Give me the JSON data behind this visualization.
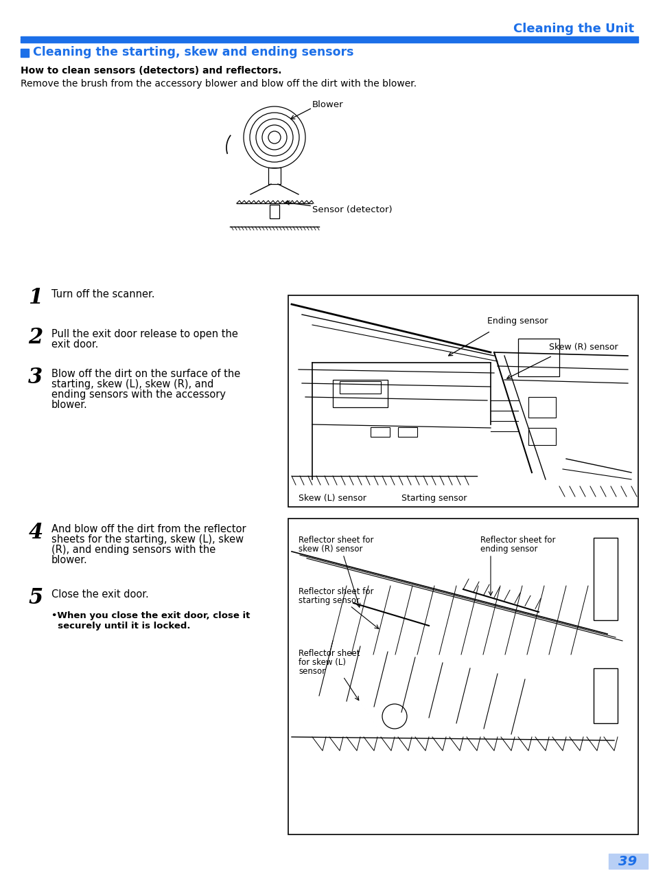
{
  "page_bg": "#ffffff",
  "blue_color": "#1c6fe8",
  "black": "#000000",
  "light_blue_bg": "#b8cff5",
  "header_title": "Cleaning the Unit",
  "section_title": "Cleaning the starting, skew and ending sensors",
  "subsection_title": "How to clean sensors (detectors) and reflectors.",
  "intro_text": "Remove the brush from the accessory blower and blow off the dirt with the blower.",
  "blower_label": "Blower",
  "sensor_label": "Sensor (detector)",
  "step1": "Turn off the scanner.",
  "step2_line1": "Pull the exit door release to open the",
  "step2_line2": "exit door.",
  "step3_line1": "Blow off the dirt on the surface of the",
  "step3_line2": "starting, skew (L), skew (R), and",
  "step3_line3": "ending sensors with the accessory",
  "step3_line4": "blower.",
  "step4_line1": "And blow off the dirt from the reflector",
  "step4_line2": "sheets for the starting, skew (L), skew",
  "step4_line3": "(R), and ending sensors with the",
  "step4_line4": "blower.",
  "step5": "Close the exit door.",
  "note_line1": "•When you close the exit door, close it",
  "note_line2": "  securely until it is locked.",
  "d1_label0": "Ending sensor",
  "d1_label1": "Skew (R) sensor",
  "d1_label2": "Skew (L) sensor",
  "d1_label3": "Starting sensor",
  "d2_label0": "Reflector sheet for",
  "d2_label0b": "skew (R) sensor",
  "d2_label1": "Reflector sheet for",
  "d2_label1b": "ending sensor",
  "d2_label2": "Reflector sheet for",
  "d2_label2b": "starting sensor",
  "d2_label3": "Reflector sheet",
  "d2_label3b": "for skew (L)",
  "d2_label3c": "sensor",
  "page_number": "39"
}
